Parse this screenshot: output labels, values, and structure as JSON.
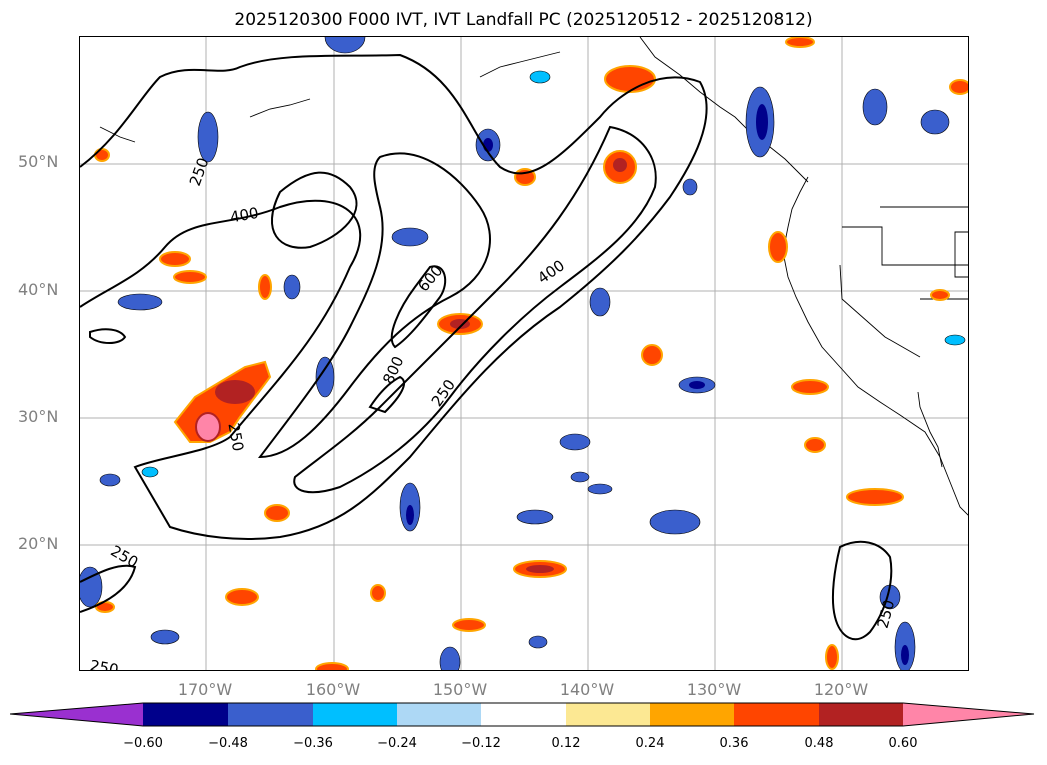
{
  "title": "2025120300 F000 IVT, IVT Landfall PC (2025120512 - 2025120812)",
  "lat_labels": [
    "50°N",
    "40°N",
    "30°N",
    "20°N"
  ],
  "lon_labels": [
    "170°W",
    "160°W",
    "150°W",
    "140°W",
    "130°W",
    "120°W"
  ],
  "contour_labels": [
    "250",
    "400",
    "600",
    "400",
    "800",
    "250",
    "250",
    "250",
    "250",
    "250"
  ],
  "colorbar": {
    "ticks": [
      "−0.60",
      "−0.48",
      "−0.36",
      "−0.24",
      "−0.12",
      "0.12",
      "0.24",
      "0.36",
      "0.48",
      "0.60"
    ],
    "colors": [
      "#9a30d0",
      "#00008b",
      "#3a5fcd",
      "#00bfff",
      "#add8f5",
      "#ffffff",
      "#fce893",
      "#ffa500",
      "#ff4500",
      "#b22222",
      "#ff85a8"
    ]
  },
  "map": {
    "lon_range": [
      -180,
      -110
    ],
    "lat_range": [
      10,
      60
    ],
    "grid_lons": [
      -170,
      -160,
      -150,
      -140,
      -130,
      -120
    ],
    "grid_lats": [
      20,
      30,
      40,
      50
    ],
    "contour_levels": [
      250,
      400,
      600,
      800
    ]
  }
}
